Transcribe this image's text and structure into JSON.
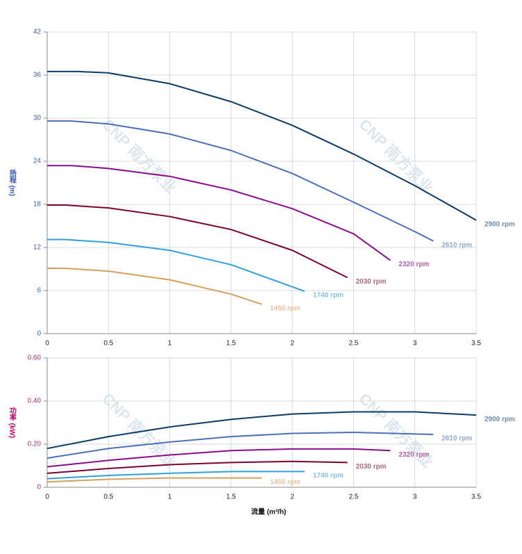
{
  "chart_data": [
    {
      "type": "line",
      "watermark": "CNP 南方泵业",
      "y_label": "扬程 (m)",
      "y_label_color": "#3a56b0",
      "tick_color": "#4060b8",
      "xlim": [
        0,
        3.5
      ],
      "xticks": [
        0,
        0.5,
        1,
        1.5,
        2,
        2.5,
        3,
        3.5
      ],
      "ylim": [
        0,
        42
      ],
      "yticks": [
        0,
        6,
        12,
        18,
        24,
        30,
        36,
        42
      ],
      "grid": true,
      "series": [
        {
          "name": "2900 rpm",
          "color": "#0b3a66",
          "label_color": "#6f8ba6",
          "x": [
            0,
            0.25,
            0.5,
            1,
            1.5,
            2,
            2.5,
            3,
            3.5
          ],
          "values": [
            36.5,
            36.5,
            36.3,
            34.8,
            32.3,
            29,
            25,
            20.6,
            15.8
          ]
        },
        {
          "name": "2610 rpm",
          "color": "#4a6fba",
          "label_color": "#8fa8d8",
          "x": [
            0,
            0.2,
            0.5,
            1,
            1.5,
            2,
            2.5,
            3,
            3.15
          ],
          "values": [
            29.6,
            29.6,
            29.2,
            27.8,
            25.5,
            22.3,
            18.3,
            14.2,
            12.9
          ]
        },
        {
          "name": "2320 rpm",
          "color": "#8b0a8b",
          "label_color": "#b461b4",
          "x": [
            0,
            0.2,
            0.5,
            1,
            1.5,
            2,
            2.5,
            2.8
          ],
          "values": [
            23.4,
            23.4,
            23,
            21.9,
            20,
            17.4,
            13.9,
            10.2
          ]
        },
        {
          "name": "2030 rpm",
          "color": "#7a0030",
          "label_color": "#b06a80",
          "x": [
            0,
            0.15,
            0.5,
            1,
            1.5,
            2,
            2.45
          ],
          "values": [
            17.9,
            17.9,
            17.5,
            16.3,
            14.5,
            11.6,
            7.8
          ]
        },
        {
          "name": "1740 rpm",
          "color": "#2ea0dd",
          "label_color": "#7fc3e8",
          "x": [
            0,
            0.15,
            0.5,
            1,
            1.5,
            2.1
          ],
          "values": [
            13.1,
            13.1,
            12.7,
            11.6,
            9.6,
            5.9
          ]
        },
        {
          "name": "1450 rpm",
          "color": "#d4a060",
          "label_color": "#e8c298",
          "x": [
            0,
            0.15,
            0.5,
            1,
            1.5,
            1.75
          ],
          "values": [
            9.1,
            9.1,
            8.7,
            7.5,
            5.5,
            4.1
          ]
        }
      ]
    },
    {
      "type": "line",
      "watermark": "CNP 南方泵业",
      "y_label": "功率 (kW)",
      "y_label_color": "#b8006a",
      "tick_color": "#b03070",
      "x_label": "流量 (m³/h)",
      "xlim": [
        0,
        3.5
      ],
      "xticks": [
        0,
        0.5,
        1,
        1.5,
        2,
        2.5,
        3,
        3.5
      ],
      "ylim": [
        0,
        0.6
      ],
      "yticks": [
        0,
        {
          "value": 0.2,
          "label": "0.20"
        },
        {
          "value": 0.4,
          "label": "0.40"
        },
        {
          "value": 0.6,
          "label": "0.60"
        }
      ],
      "grid": true,
      "series": [
        {
          "name": "2900 rpm",
          "color": "#0b3a66",
          "label_color": "#6f8ba6",
          "x": [
            0,
            0.5,
            1,
            1.5,
            2,
            2.5,
            3,
            3.5
          ],
          "values": [
            0.18,
            0.235,
            0.28,
            0.315,
            0.34,
            0.35,
            0.35,
            0.335
          ]
        },
        {
          "name": "2610 rpm",
          "color": "#4a6fba",
          "label_color": "#8fa8d8",
          "x": [
            0,
            0.5,
            1,
            1.5,
            2,
            2.5,
            3.15
          ],
          "values": [
            0.135,
            0.18,
            0.21,
            0.235,
            0.25,
            0.255,
            0.245
          ]
        },
        {
          "name": "2320 rpm",
          "color": "#8b0a8b",
          "label_color": "#b461b4",
          "x": [
            0,
            0.5,
            1,
            1.5,
            2,
            2.5,
            2.8
          ],
          "values": [
            0.095,
            0.125,
            0.15,
            0.17,
            0.178,
            0.178,
            0.17
          ]
        },
        {
          "name": "2030 rpm",
          "color": "#7a0030",
          "label_color": "#b06a80",
          "x": [
            0,
            0.5,
            1,
            1.5,
            2,
            2.45
          ],
          "values": [
            0.065,
            0.087,
            0.105,
            0.115,
            0.12,
            0.115
          ]
        },
        {
          "name": "1740 rpm",
          "color": "#2ea0dd",
          "label_color": "#7fc3e8",
          "x": [
            0,
            0.5,
            1,
            1.5,
            2.1
          ],
          "values": [
            0.04,
            0.055,
            0.065,
            0.073,
            0.073
          ]
        },
        {
          "name": "1450 rpm",
          "color": "#d4a060",
          "label_color": "#e8c298",
          "x": [
            0,
            0.5,
            1,
            1.5,
            1.75
          ],
          "values": [
            0.025,
            0.037,
            0.043,
            0.043,
            0.043
          ]
        }
      ]
    }
  ]
}
